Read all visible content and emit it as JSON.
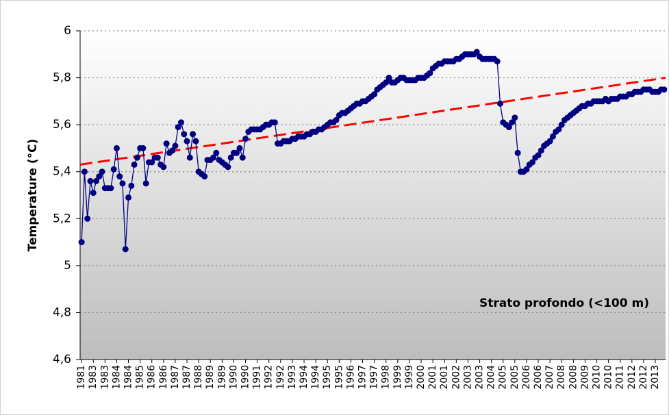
{
  "chart_data": {
    "type": "line",
    "y_label": "Temperature (°C)",
    "annotation": "Strato profondo (<100 m)",
    "ylim": [
      4.6,
      6
    ],
    "yticks": [
      {
        "value": 4.6,
        "label": "4,6"
      },
      {
        "value": 4.8,
        "label": "4,8"
      },
      5,
      {
        "value": 5.2,
        "label": "5,2"
      },
      {
        "value": 5.4,
        "label": "5,4"
      },
      {
        "value": 5.6,
        "label": "5,6"
      },
      {
        "value": 5.8,
        "label": "5,8"
      },
      6
    ],
    "grid": true,
    "categories": [
      "1981",
      null,
      null,
      null,
      "1983",
      null,
      null,
      null,
      "1983",
      null,
      null,
      null,
      "1984",
      null,
      null,
      null,
      "1984",
      null,
      null,
      null,
      "1985",
      null,
      null,
      null,
      "1986",
      null,
      null,
      null,
      "1986",
      null,
      null,
      null,
      "1987",
      null,
      null,
      null,
      "1987",
      null,
      null,
      null,
      "1988",
      null,
      null,
      null,
      "1989",
      null,
      null,
      null,
      "1989",
      null,
      null,
      null,
      "1990",
      null,
      null,
      null,
      "1990",
      null,
      null,
      null,
      "1991",
      null,
      null,
      null,
      "1992",
      null,
      null,
      null,
      "1992",
      null,
      null,
      null,
      "1993",
      null,
      null,
      null,
      "1994",
      null,
      null,
      null,
      "1994",
      null,
      null,
      null,
      "1995",
      null,
      null,
      null,
      "1995",
      null,
      null,
      null,
      "1996",
      null,
      null,
      null,
      "1997",
      null,
      null,
      null,
      "1997",
      null,
      null,
      null,
      "1998",
      null,
      null,
      null,
      "1999",
      null,
      null,
      null,
      "1999",
      null,
      null,
      null,
      "2000",
      null,
      null,
      null,
      "2001",
      null,
      null,
      null,
      "2001",
      null,
      null,
      null,
      "2002",
      null,
      null,
      null,
      "2003",
      null,
      null,
      null,
      "2003",
      null,
      null,
      null,
      "2004",
      null,
      null,
      null,
      "2005",
      null,
      null,
      null,
      "2005",
      null,
      null,
      null,
      "2006",
      null,
      null,
      null,
      "2006",
      null,
      null,
      null,
      "2007",
      null,
      null,
      null,
      "2008",
      null,
      null,
      null,
      "2008",
      null,
      null,
      null,
      "2009",
      null,
      null,
      null,
      "2010",
      null,
      null,
      null,
      "2010",
      null,
      null,
      null,
      "2011",
      null,
      null,
      null,
      "2012",
      null,
      null,
      null,
      "2012",
      null,
      null,
      null,
      "2013",
      null,
      null,
      null
    ],
    "series": [
      {
        "color": "#000080",
        "values": [
          5.1,
          5.4,
          5.2,
          5.36,
          5.31,
          5.36,
          5.38,
          5.4,
          5.33,
          5.33,
          5.33,
          5.41,
          5.5,
          5.38,
          5.35,
          5.07,
          5.29,
          5.34,
          5.43,
          5.46,
          5.5,
          5.5,
          5.35,
          5.44,
          5.44,
          5.46,
          5.46,
          5.43,
          5.42,
          5.52,
          5.48,
          5.49,
          5.51,
          5.59,
          5.61,
          5.56,
          5.53,
          5.46,
          5.56,
          5.53,
          5.4,
          5.39,
          5.38,
          5.45,
          5.45,
          5.46,
          5.48,
          5.45,
          5.44,
          5.43,
          5.42,
          5.46,
          5.48,
          5.48,
          5.5,
          5.46,
          5.54,
          5.57,
          5.58,
          5.58,
          5.58,
          5.58,
          5.59,
          5.6,
          5.6,
          5.61,
          5.61,
          5.52,
          5.52,
          5.53,
          5.53,
          5.53,
          5.54,
          5.54,
          5.55,
          5.55,
          5.55,
          5.56,
          5.56,
          5.57,
          5.57,
          5.58,
          5.58,
          5.59,
          5.6,
          5.61,
          5.61,
          5.62,
          5.64,
          5.65,
          5.65,
          5.66,
          5.67,
          5.68,
          5.69,
          5.69,
          5.7,
          5.7,
          5.71,
          5.72,
          5.73,
          5.75,
          5.76,
          5.77,
          5.78,
          5.8,
          5.78,
          5.78,
          5.79,
          5.8,
          5.8,
          5.79,
          5.79,
          5.79,
          5.79,
          5.8,
          5.8,
          5.8,
          5.81,
          5.82,
          5.84,
          5.85,
          5.86,
          5.86,
          5.87,
          5.87,
          5.87,
          5.87,
          5.88,
          5.88,
          5.89,
          5.9,
          5.9,
          5.9,
          5.9,
          5.91,
          5.89,
          5.88,
          5.88,
          5.88,
          5.88,
          5.88,
          5.87,
          5.69,
          5.61,
          5.6,
          5.59,
          5.61,
          5.63,
          5.48,
          5.4,
          5.4,
          5.41,
          5.43,
          5.44,
          5.46,
          5.47,
          5.49,
          5.51,
          5.52,
          5.53,
          5.55,
          5.57,
          5.58,
          5.6,
          5.62,
          5.63,
          5.64,
          5.65,
          5.66,
          5.67,
          5.68,
          5.68,
          5.69,
          5.69,
          5.7,
          5.7,
          5.7,
          5.7,
          5.71,
          5.7,
          5.71,
          5.71,
          5.71,
          5.72,
          5.72,
          5.72,
          5.73,
          5.73,
          5.74,
          5.74,
          5.74,
          5.75,
          5.75,
          5.75,
          5.74,
          5.74,
          5.74,
          5.75,
          5.75
        ]
      }
    ],
    "trendline": {
      "color": "#ff0000",
      "start": 5.43,
      "end": 5.8
    }
  }
}
